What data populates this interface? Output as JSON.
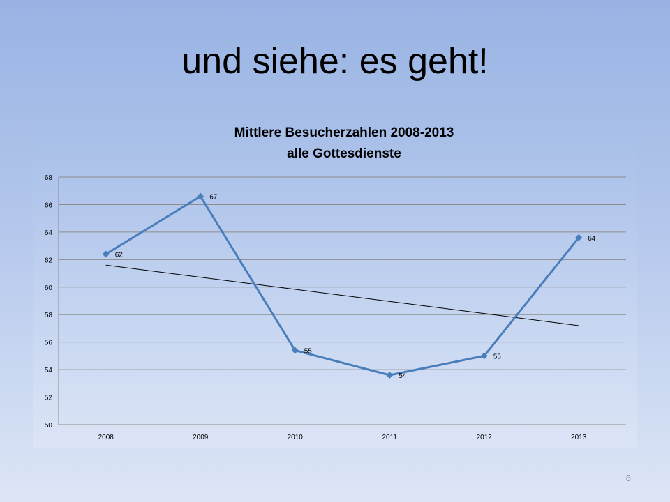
{
  "slide": {
    "title": "und siehe: es geht!",
    "page_number": "8"
  },
  "chart_data": {
    "type": "line",
    "title": "Mittlere Besucherzahlen 2008-2013",
    "subtitle": "alle Gottesdienste",
    "categories": [
      "2008",
      "2009",
      "2010",
      "2011",
      "2012",
      "2013"
    ],
    "series": [
      {
        "values": [
          62.4,
          66.6,
          55.4,
          53.6,
          55.0,
          63.6
        ],
        "data_labels": [
          "62",
          "67",
          "55",
          "54",
          "55",
          "64"
        ],
        "color": "#4a7ebb",
        "marker": "diamond"
      }
    ],
    "trendline": {
      "type": "linear",
      "values": [
        61.6,
        57.2
      ],
      "color": "#000000"
    },
    "ylim": [
      50,
      68
    ],
    "yticks": [
      "50",
      "52",
      "54",
      "56",
      "58",
      "60",
      "62",
      "64",
      "66",
      "68"
    ],
    "grid": true,
    "legend": "none",
    "xlabel": "",
    "ylabel": ""
  }
}
